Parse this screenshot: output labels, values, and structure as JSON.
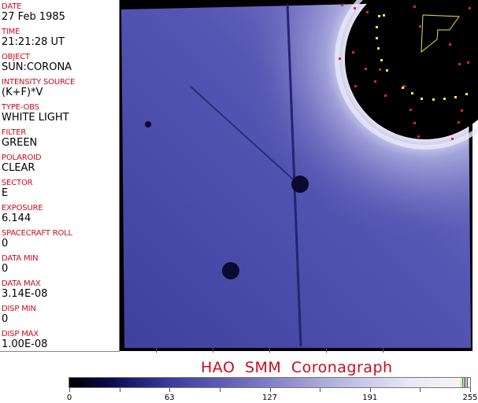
{
  "fields": [
    {
      "label": "DATE",
      "value": "27 Feb 1985"
    },
    {
      "label": "TIME",
      "value": "21:21:28 UT"
    },
    {
      "label": "OBJECT",
      "value": "SUN:CORONA"
    },
    {
      "label": "INTENSITY SOURCE",
      "value": "(K+F)*V"
    },
    {
      "label": "TYPE-OBS",
      "value": "WHITE LIGHT"
    },
    {
      "label": "FILTER",
      "value": "GREEN"
    },
    {
      "label": "POLAROID",
      "value": "CLEAR"
    },
    {
      "label": "SECTOR",
      "value": "E"
    },
    {
      "label": "EXPOSURE",
      "value": "6.144"
    },
    {
      "label": "SPACECRAFT ROLL",
      "value": "0"
    },
    {
      "label": "DATA MIN",
      "value": "0"
    },
    {
      "label": "DATA MAX",
      "value": "3.14E-08"
    },
    {
      "label": "DISP MIN",
      "value": "0"
    },
    {
      "label": "DISP MAX",
      "value": "1.00E-08"
    }
  ],
  "title": "HAO  SMM Coronagraph",
  "colorbar": {
    "tick_labels": [
      "0",
      "63",
      "127",
      "191",
      "255"
    ],
    "colors": {
      "label": "#cc0a1e",
      "low": "#000000",
      "mid": "#7070c0",
      "high": "#f6f6f6"
    }
  }
}
